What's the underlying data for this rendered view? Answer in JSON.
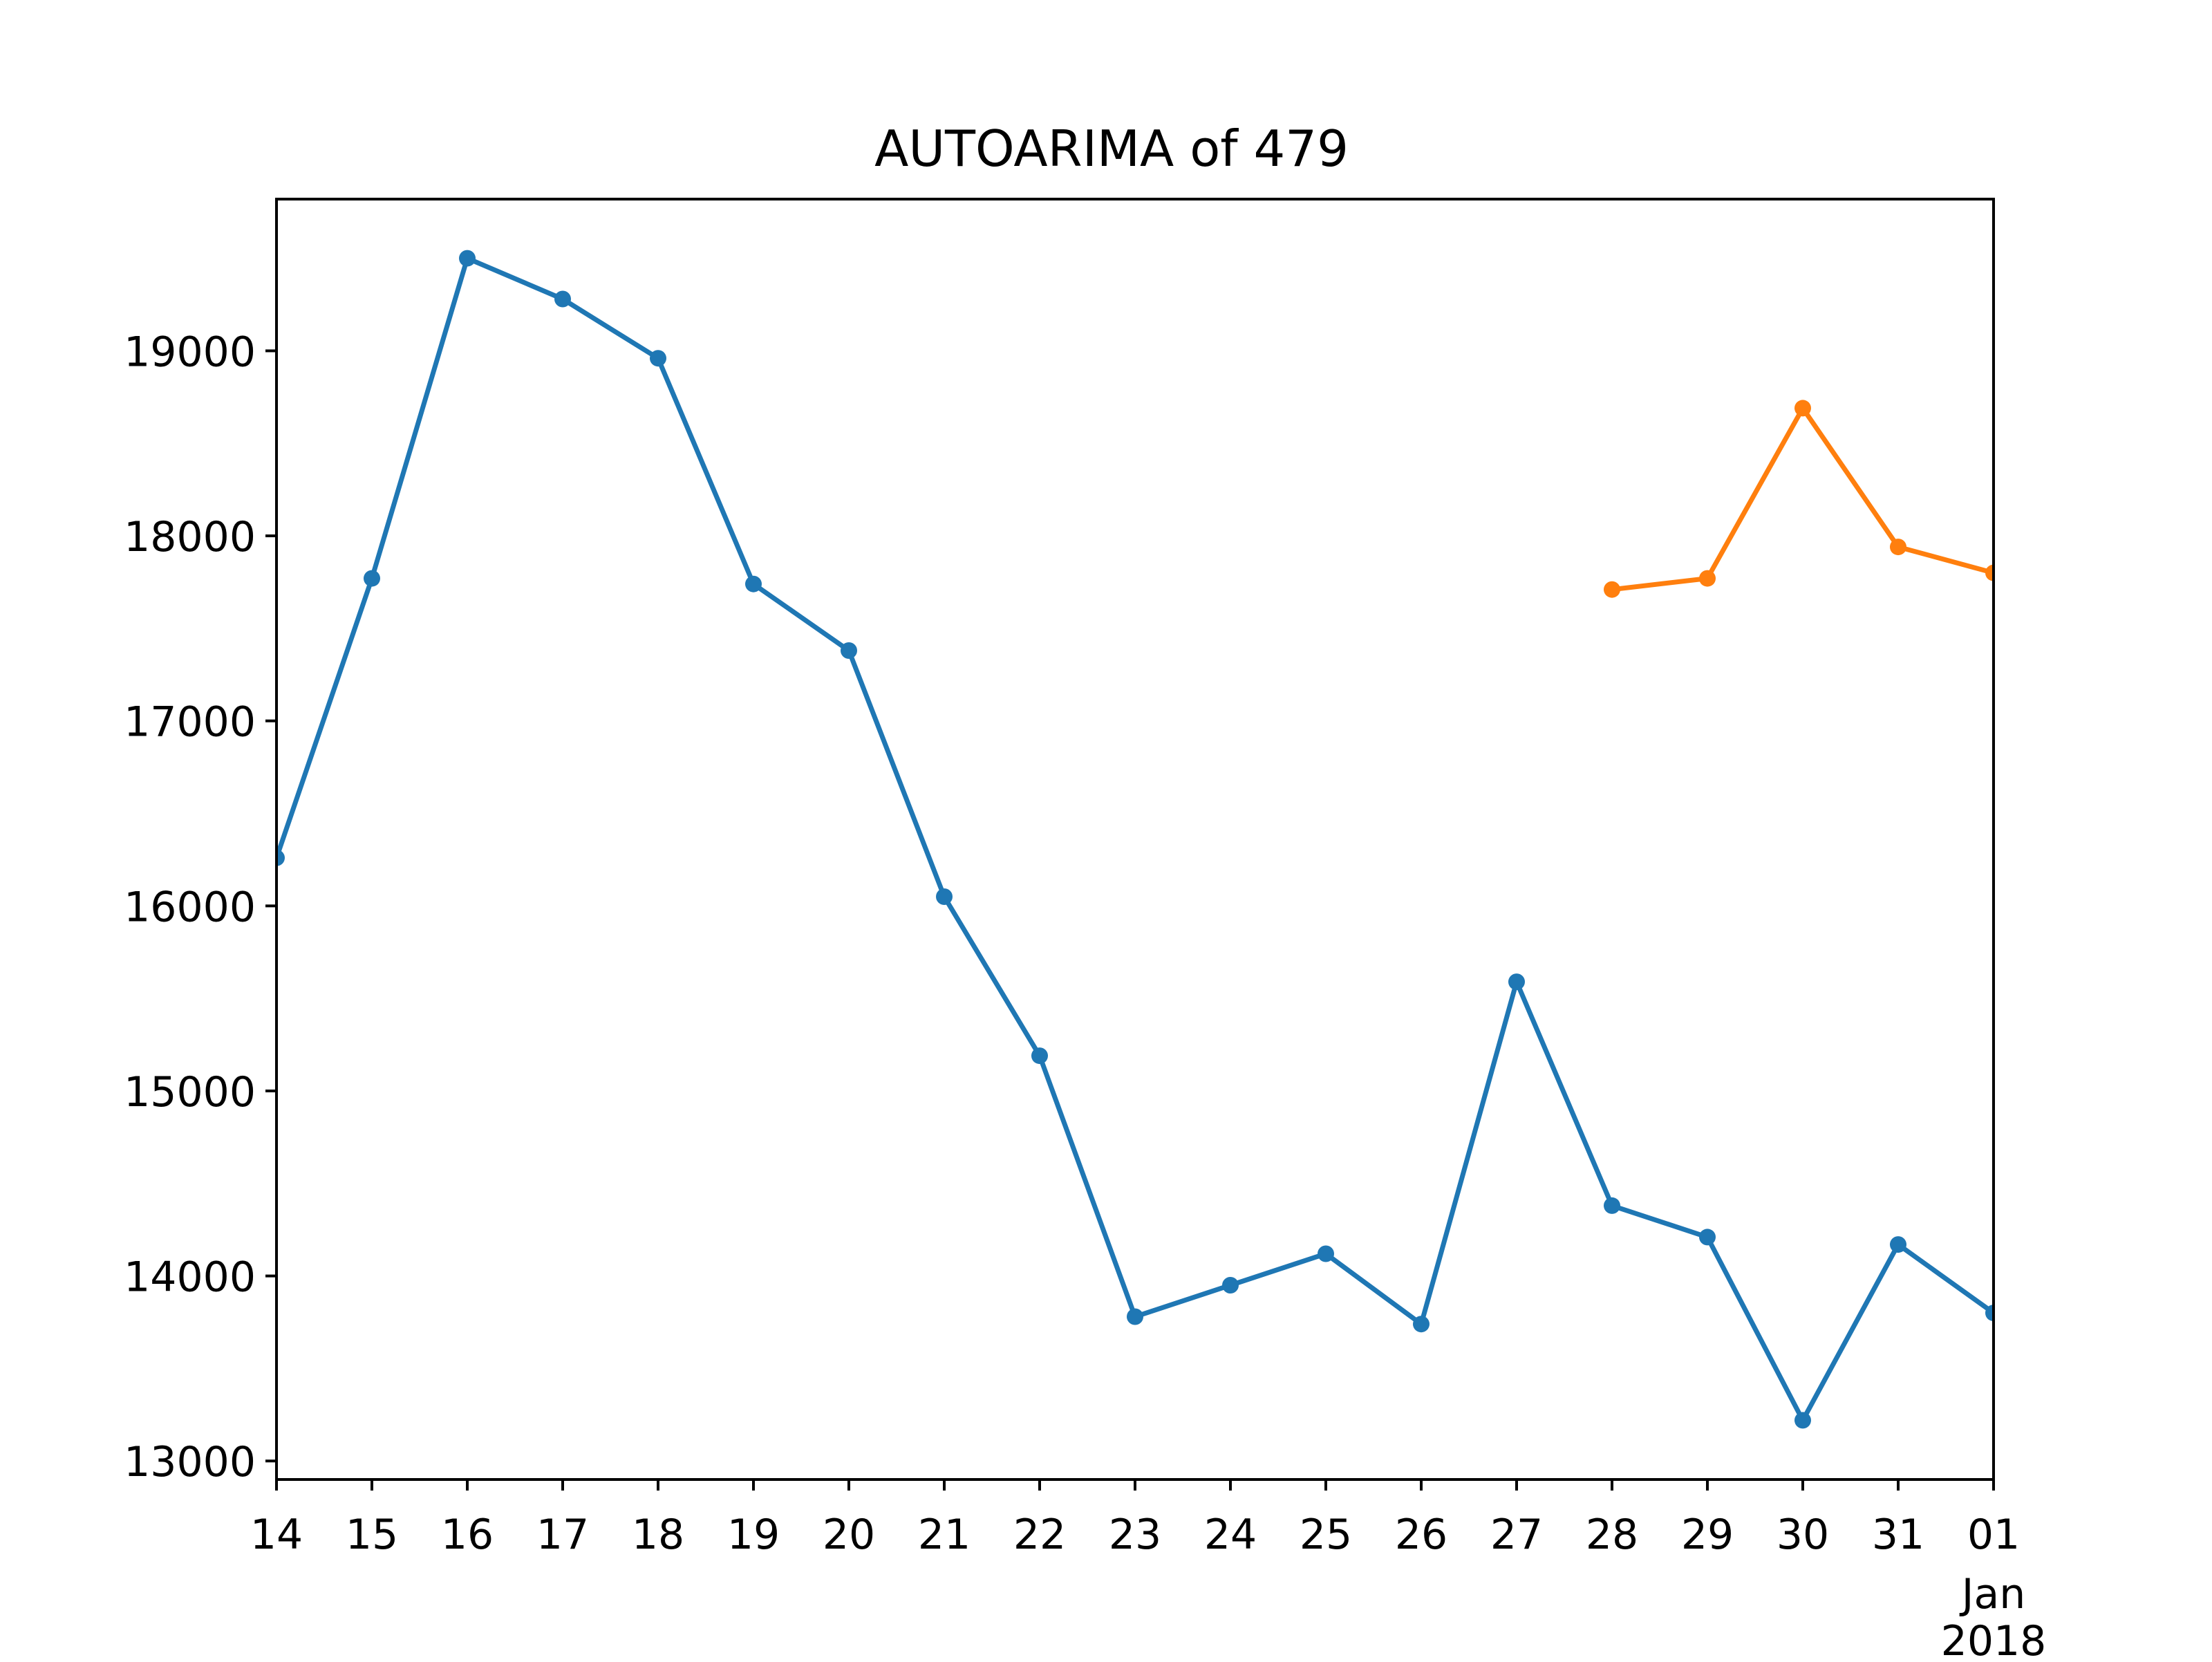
{
  "chart_data": {
    "type": "line",
    "title": "AUTOARIMA of 479",
    "xlabel": "",
    "ylabel": "",
    "x": [
      "2017-12-14",
      "2017-12-15",
      "2017-12-16",
      "2017-12-17",
      "2017-12-18",
      "2017-12-19",
      "2017-12-20",
      "2017-12-21",
      "2017-12-22",
      "2017-12-23",
      "2017-12-24",
      "2017-12-25",
      "2017-12-26",
      "2017-12-27",
      "2017-12-28",
      "2017-12-29",
      "2017-12-30",
      "2017-12-31",
      "2018-01-01"
    ],
    "x_tick_labels": [
      "14",
      "15",
      "16",
      "17",
      "18",
      "19",
      "20",
      "21",
      "22",
      "23",
      "24",
      "25",
      "26",
      "27",
      "28",
      "29",
      "30",
      "31",
      "01"
    ],
    "x_tick_sublabels": [
      "Jan",
      "2018"
    ],
    "xlim": [
      "2017-12-14",
      "2018-01-01"
    ],
    "ylim": [
      12900,
      19820
    ],
    "y_ticks": [
      13000,
      14000,
      15000,
      16000,
      17000,
      18000,
      19000
    ],
    "y_tick_labels": [
      "13000",
      "14000",
      "15000",
      "16000",
      "17000",
      "18000",
      "19000"
    ],
    "grid": false,
    "series": [
      {
        "color": "#1f77b4",
        "x": [
          "2017-12-14",
          "2017-12-15",
          "2017-12-16",
          "2017-12-17",
          "2017-12-18",
          "2017-12-19",
          "2017-12-20",
          "2017-12-21",
          "2017-12-22",
          "2017-12-23",
          "2017-12-24",
          "2017-12-25",
          "2017-12-26",
          "2017-12-27",
          "2017-12-28",
          "2017-12-29",
          "2017-12-30",
          "2017-12-31",
          "2018-01-01"
        ],
        "values": [
          16260,
          17770,
          19500,
          19280,
          18960,
          17740,
          17380,
          16050,
          15190,
          13780,
          13950,
          14120,
          13740,
          15590,
          14380,
          14210,
          13220,
          14170,
          13800
        ]
      },
      {
        "color": "#ff7f0e",
        "x": [
          "2017-12-28",
          "2017-12-29",
          "2017-12-30",
          "2017-12-31",
          "2018-01-01"
        ],
        "values": [
          17710,
          17770,
          18690,
          17940,
          17800
        ]
      }
    ]
  }
}
